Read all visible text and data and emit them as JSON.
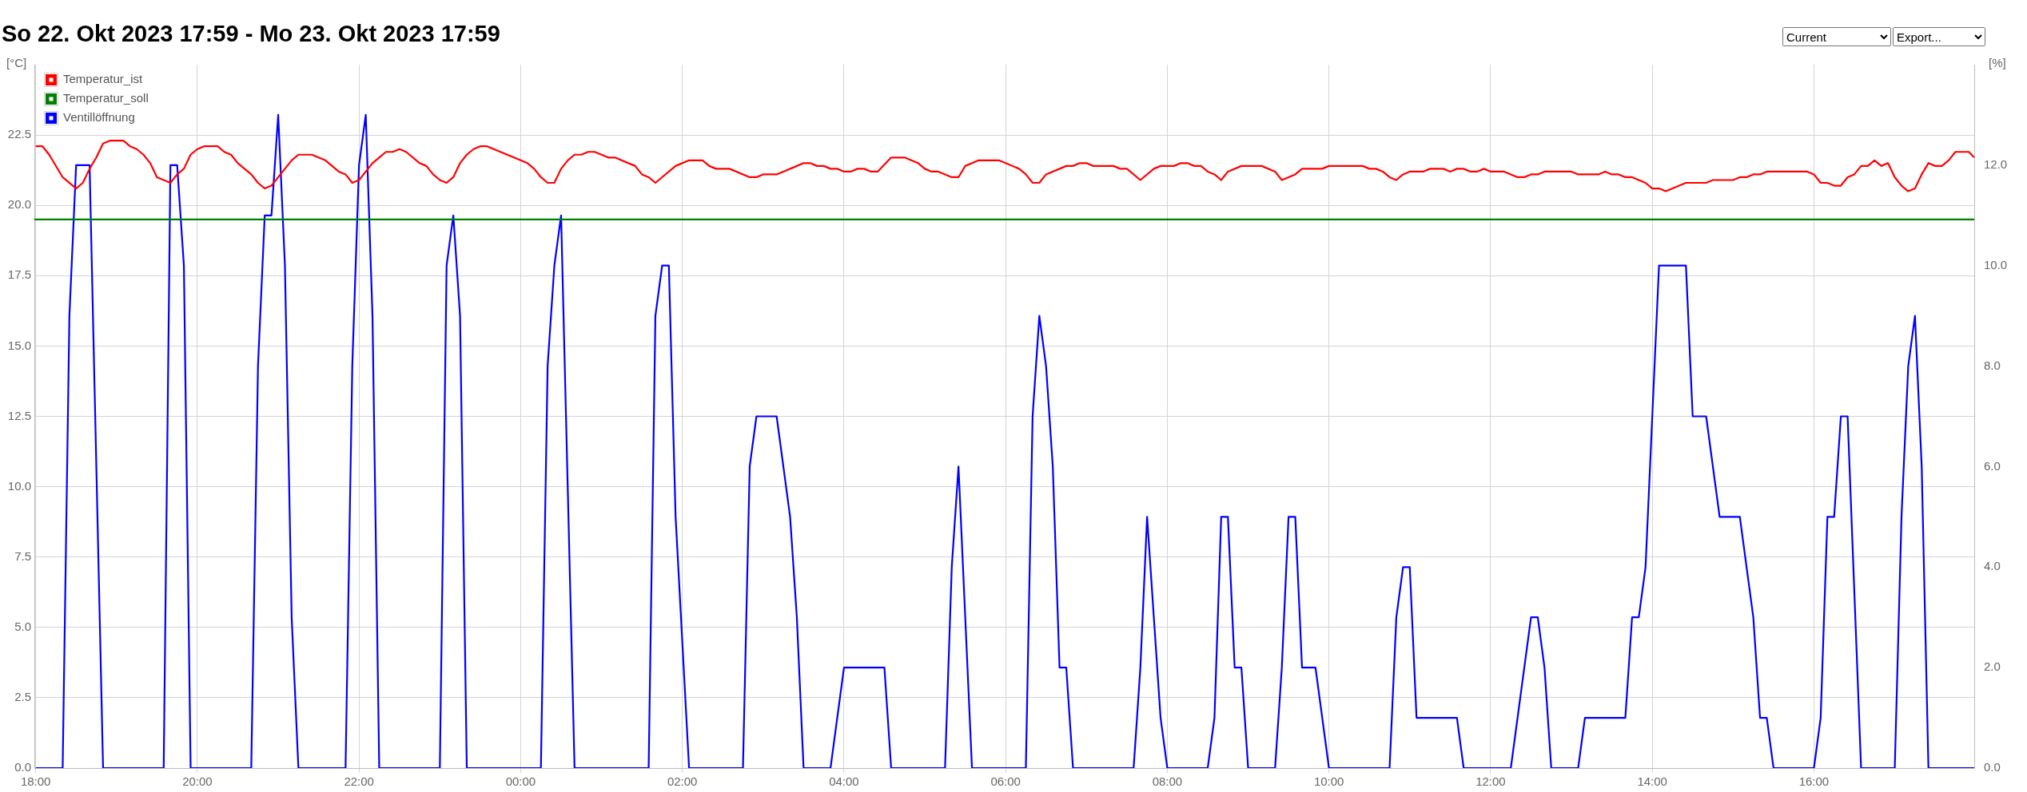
{
  "chart_data": {
    "type": "line",
    "title": "So 22. Okt 2023 17:59 - Mo 23. Okt 2023 17:59",
    "annotations": [
      "Current",
      "Export..."
    ],
    "ylabel": "[°C]",
    "y2label": "[%]",
    "xlim": [
      "2023-10-22T17:59",
      "2023-10-23T17:59"
    ],
    "xticks": [
      {
        "value": "2023-10-22T18:00",
        "label": "18:00"
      },
      {
        "value": "2023-10-22T20:00",
        "label": "20:00"
      },
      {
        "value": "2023-10-22T22:00",
        "label": "22:00"
      },
      {
        "value": "2023-10-23T00:00",
        "label": "00:00"
      },
      {
        "value": "2023-10-23T02:00",
        "label": "02:00"
      },
      {
        "value": "2023-10-23T04:00",
        "label": "04:00"
      },
      {
        "value": "2023-10-23T06:00",
        "label": "06:00"
      },
      {
        "value": "2023-10-23T08:00",
        "label": "08:00"
      },
      {
        "value": "2023-10-23T10:00",
        "label": "10:00"
      },
      {
        "value": "2023-10-23T12:00",
        "label": "12:00"
      },
      {
        "value": "2023-10-23T14:00",
        "label": "14:00"
      },
      {
        "value": "2023-10-23T16:00",
        "label": "16:00"
      }
    ],
    "ylim": [
      0,
      25
    ],
    "yticks": [
      {
        "value": 0,
        "label": "0.0"
      },
      {
        "value": 2.5,
        "label": "2.5"
      },
      {
        "value": 5,
        "label": "5.0"
      },
      {
        "value": 7.5,
        "label": "7.5"
      },
      {
        "value": 10,
        "label": "10.0"
      },
      {
        "value": 12.5,
        "label": "12.5"
      },
      {
        "value": 15,
        "label": "15.0"
      },
      {
        "value": 17.5,
        "label": "17.5"
      },
      {
        "value": 20,
        "label": "20.0"
      },
      {
        "value": 22.5,
        "label": "22.5"
      }
    ],
    "y2lim": [
      0,
      14
    ],
    "y2ticks": [
      {
        "value": 0,
        "label": "0.0"
      },
      {
        "value": 2,
        "label": "2.0"
      },
      {
        "value": 4,
        "label": "4.0"
      },
      {
        "value": 6,
        "label": "6.0"
      },
      {
        "value": 8,
        "label": "8.0"
      },
      {
        "value": 10,
        "label": "10.0"
      },
      {
        "value": 12,
        "label": "12.0"
      }
    ],
    "grid": true,
    "legend": "top left",
    "marker": "none",
    "line_style": "solid",
    "series": [
      {
        "name": "Temperatur_ist",
        "color": "#ff0000",
        "x": [
          "2023-10-22T18:00",
          "2023-10-22T18:05",
          "2023-10-22T18:10",
          "2023-10-22T18:20",
          "2023-10-22T18:30",
          "2023-10-22T18:35",
          "2023-10-22T18:40",
          "2023-10-22T18:45",
          "2023-10-22T18:50",
          "2023-10-22T18:55",
          "2023-10-22T19:05",
          "2023-10-22T19:10",
          "2023-10-22T19:15",
          "2023-10-22T19:20",
          "2023-10-22T19:25",
          "2023-10-22T19:30",
          "2023-10-22T19:40",
          "2023-10-22T19:45",
          "2023-10-22T19:50",
          "2023-10-22T19:55",
          "2023-10-22T20:00",
          "2023-10-22T20:05",
          "2023-10-22T20:15",
          "2023-10-22T20:20",
          "2023-10-22T20:25",
          "2023-10-22T20:30",
          "2023-10-22T20:40",
          "2023-10-22T20:45",
          "2023-10-22T20:50",
          "2023-10-22T20:55",
          "2023-10-22T21:05",
          "2023-10-22T21:10",
          "2023-10-22T21:15",
          "2023-10-22T21:25",
          "2023-10-22T21:35",
          "2023-10-22T21:45",
          "2023-10-22T21:50",
          "2023-10-22T21:55",
          "2023-10-22T22:00",
          "2023-10-22T22:10",
          "2023-10-22T22:15",
          "2023-10-22T22:20",
          "2023-10-22T22:25",
          "2023-10-22T22:30",
          "2023-10-22T22:35",
          "2023-10-22T22:45",
          "2023-10-22T22:50",
          "2023-10-22T22:55",
          "2023-10-22T23:00",
          "2023-10-22T23:05",
          "2023-10-22T23:10",
          "2023-10-22T23:15",
          "2023-10-22T23:20",
          "2023-10-22T23:25",
          "2023-10-22T23:30",
          "2023-10-22T23:35",
          "2023-10-23T00:05",
          "2023-10-23T00:10",
          "2023-10-23T00:15",
          "2023-10-23T00:20",
          "2023-10-23T00:25",
          "2023-10-23T00:30",
          "2023-10-23T00:35",
          "2023-10-23T00:40",
          "2023-10-23T00:45",
          "2023-10-23T00:50",
          "2023-10-23T00:55",
          "2023-10-23T01:05",
          "2023-10-23T01:10",
          "2023-10-23T01:25",
          "2023-10-23T01:30",
          "2023-10-23T01:35",
          "2023-10-23T01:40",
          "2023-10-23T01:55",
          "2023-10-23T02:05",
          "2023-10-23T02:15",
          "2023-10-23T02:20",
          "2023-10-23T02:25",
          "2023-10-23T02:35",
          "2023-10-23T02:50",
          "2023-10-23T02:55",
          "2023-10-23T03:00",
          "2023-10-23T03:10",
          "2023-10-23T03:15",
          "2023-10-23T03:25",
          "2023-10-23T03:30",
          "2023-10-23T03:35",
          "2023-10-23T03:40",
          "2023-10-23T03:45",
          "2023-10-23T03:50",
          "2023-10-23T03:55",
          "2023-10-23T04:00",
          "2023-10-23T04:05",
          "2023-10-23T04:10",
          "2023-10-23T04:15",
          "2023-10-23T04:20",
          "2023-10-23T04:25",
          "2023-10-23T04:35",
          "2023-10-23T04:45",
          "2023-10-23T04:55",
          "2023-10-23T05:00",
          "2023-10-23T05:05",
          "2023-10-23T05:10",
          "2023-10-23T05:20",
          "2023-10-23T05:25",
          "2023-10-23T05:30",
          "2023-10-23T05:40",
          "2023-10-23T05:55",
          "2023-10-23T06:10",
          "2023-10-23T06:15",
          "2023-10-23T06:20",
          "2023-10-23T06:25",
          "2023-10-23T06:30",
          "2023-10-23T06:45",
          "2023-10-23T06:50",
          "2023-10-23T06:55",
          "2023-10-23T07:00",
          "2023-10-23T07:05",
          "2023-10-23T07:20",
          "2023-10-23T07:25",
          "2023-10-23T07:30",
          "2023-10-23T07:40",
          "2023-10-23T07:50",
          "2023-10-23T07:55",
          "2023-10-23T08:05",
          "2023-10-23T08:10",
          "2023-10-23T08:15",
          "2023-10-23T08:20",
          "2023-10-23T08:25",
          "2023-10-23T08:30",
          "2023-10-23T08:35",
          "2023-10-23T08:40",
          "2023-10-23T08:45",
          "2023-10-23T08:55",
          "2023-10-23T09:10",
          "2023-10-23T09:20",
          "2023-10-23T09:25",
          "2023-10-23T09:35",
          "2023-10-23T09:40",
          "2023-10-23T09:55",
          "2023-10-23T10:00",
          "2023-10-23T10:25",
          "2023-10-23T10:30",
          "2023-10-23T10:35",
          "2023-10-23T10:40",
          "2023-10-23T10:45",
          "2023-10-23T10:50",
          "2023-10-23T10:55",
          "2023-10-23T11:00",
          "2023-10-23T11:10",
          "2023-10-23T11:15",
          "2023-10-23T11:25",
          "2023-10-23T11:30",
          "2023-10-23T11:35",
          "2023-10-23T11:40",
          "2023-10-23T11:45",
          "2023-10-23T11:50",
          "2023-10-23T11:55",
          "2023-10-23T12:00",
          "2023-10-23T12:10",
          "2023-10-23T12:20",
          "2023-10-23T12:25",
          "2023-10-23T12:30",
          "2023-10-23T12:35",
          "2023-10-23T12:40",
          "2023-10-23T13:00",
          "2023-10-23T13:05",
          "2023-10-23T13:20",
          "2023-10-23T13:25",
          "2023-10-23T13:30",
          "2023-10-23T13:35",
          "2023-10-23T13:40",
          "2023-10-23T13:45",
          "2023-10-23T13:55",
          "2023-10-23T14:00",
          "2023-10-23T14:05",
          "2023-10-23T14:10",
          "2023-10-23T14:25",
          "2023-10-23T14:40",
          "2023-10-23T14:45",
          "2023-10-23T15:00",
          "2023-10-23T15:05",
          "2023-10-23T15:10",
          "2023-10-23T15:15",
          "2023-10-23T15:20",
          "2023-10-23T15:25",
          "2023-10-23T15:55",
          "2023-10-23T16:00",
          "2023-10-23T16:05",
          "2023-10-23T16:10",
          "2023-10-23T16:15",
          "2023-10-23T16:20",
          "2023-10-23T16:25",
          "2023-10-23T16:30",
          "2023-10-23T16:35",
          "2023-10-23T16:40",
          "2023-10-23T16:45",
          "2023-10-23T16:50",
          "2023-10-23T16:55",
          "2023-10-23T17:00",
          "2023-10-23T17:05",
          "2023-10-23T17:10",
          "2023-10-23T17:15",
          "2023-10-23T17:20",
          "2023-10-23T17:25",
          "2023-10-23T17:30",
          "2023-10-23T17:35",
          "2023-10-23T17:40",
          "2023-10-23T17:45",
          "2023-10-23T17:55",
          "2023-10-23T17:59"
        ],
        "values": [
          22.1,
          22.1,
          21.8,
          21.0,
          20.6,
          20.8,
          21.3,
          21.7,
          22.2,
          22.3,
          22.3,
          22.1,
          22.0,
          21.8,
          21.5,
          21.0,
          20.8,
          21.1,
          21.3,
          21.8,
          22.0,
          22.1,
          22.1,
          21.9,
          21.8,
          21.5,
          21.1,
          20.8,
          20.6,
          20.7,
          21.3,
          21.6,
          21.8,
          21.8,
          21.6,
          21.2,
          21.1,
          20.8,
          20.9,
          21.5,
          21.7,
          21.9,
          21.9,
          22.0,
          21.9,
          21.5,
          21.4,
          21.1,
          20.9,
          20.8,
          21.0,
          21.5,
          21.8,
          22.0,
          22.1,
          22.1,
          21.5,
          21.3,
          21.0,
          20.8,
          20.8,
          21.3,
          21.6,
          21.8,
          21.8,
          21.9,
          21.9,
          21.7,
          21.7,
          21.4,
          21.1,
          21.0,
          20.8,
          21.4,
          21.6,
          21.6,
          21.4,
          21.3,
          21.3,
          21.0,
          21.0,
          21.1,
          21.1,
          21.2,
          21.4,
          21.5,
          21.5,
          21.4,
          21.4,
          21.3,
          21.3,
          21.2,
          21.2,
          21.3,
          21.3,
          21.2,
          21.2,
          21.7,
          21.7,
          21.5,
          21.3,
          21.2,
          21.2,
          21.0,
          21.0,
          21.4,
          21.6,
          21.6,
          21.3,
          21.1,
          20.8,
          20.8,
          21.1,
          21.4,
          21.4,
          21.5,
          21.5,
          21.4,
          21.4,
          21.3,
          21.3,
          20.9,
          21.3,
          21.4,
          21.4,
          21.5,
          21.5,
          21.4,
          21.4,
          21.2,
          21.1,
          20.9,
          21.2,
          21.4,
          21.4,
          21.2,
          20.9,
          21.1,
          21.3,
          21.3,
          21.4,
          21.4,
          21.3,
          21.3,
          21.2,
          21.0,
          20.9,
          21.1,
          21.2,
          21.2,
          21.3,
          21.3,
          21.2,
          21.3,
          21.3,
          21.2,
          21.2,
          21.3,
          21.2,
          21.2,
          21.0,
          21.0,
          21.1,
          21.1,
          21.2,
          21.2,
          21.1,
          21.1,
          21.2,
          21.1,
          21.1,
          21.0,
          21.0,
          20.8,
          20.6,
          20.6,
          20.5,
          20.8,
          20.8,
          20.9,
          20.9,
          21.0,
          21.0,
          21.1,
          21.1,
          21.2,
          21.2,
          21.1,
          20.8,
          20.8,
          20.7,
          20.7,
          21.0,
          21.1,
          21.4,
          21.4,
          21.6,
          21.4,
          21.5,
          21.0,
          20.7,
          20.5,
          20.6,
          21.1,
          21.5,
          21.4,
          21.4,
          21.6,
          21.9,
          21.9,
          21.7
        ]
      },
      {
        "name": "Temperatur_soll",
        "color": "#008000",
        "x": [
          "2023-10-22T17:59",
          "2023-10-23T17:59"
        ],
        "values": [
          19.5,
          19.5
        ]
      },
      {
        "name": "Ventillöffnung",
        "color": "#0000ff",
        "axis": "y2",
        "x": [
          "2023-10-22T18:00",
          "2023-10-22T18:20",
          "2023-10-22T18:25",
          "2023-10-22T18:30",
          "2023-10-22T18:40",
          "2023-10-22T18:50",
          "2023-10-22T19:35",
          "2023-10-22T19:40",
          "2023-10-22T19:45",
          "2023-10-22T19:50",
          "2023-10-22T19:55",
          "2023-10-22T20:40",
          "2023-10-22T20:45",
          "2023-10-22T20:50",
          "2023-10-22T20:55",
          "2023-10-22T21:00",
          "2023-10-22T21:05",
          "2023-10-22T21:10",
          "2023-10-22T21:15",
          "2023-10-22T21:50",
          "2023-10-22T21:55",
          "2023-10-22T22:00",
          "2023-10-22T22:05",
          "2023-10-22T22:10",
          "2023-10-22T22:15",
          "2023-10-22T23:00",
          "2023-10-22T23:05",
          "2023-10-22T23:10",
          "2023-10-22T23:15",
          "2023-10-22T23:20",
          "2023-10-23T00:15",
          "2023-10-23T00:20",
          "2023-10-23T00:25",
          "2023-10-23T00:30",
          "2023-10-23T00:40",
          "2023-10-23T01:35",
          "2023-10-23T01:40",
          "2023-10-23T01:45",
          "2023-10-23T01:50",
          "2023-10-23T01:55",
          "2023-10-23T02:05",
          "2023-10-23T02:45",
          "2023-10-23T02:50",
          "2023-10-23T02:55",
          "2023-10-23T03:10",
          "2023-10-23T03:15",
          "2023-10-23T03:20",
          "2023-10-23T03:25",
          "2023-10-23T03:30",
          "2023-10-23T03:50",
          "2023-10-23T04:00",
          "2023-10-23T04:30",
          "2023-10-23T04:35",
          "2023-10-23T05:15",
          "2023-10-23T05:20",
          "2023-10-23T05:25",
          "2023-10-23T05:30",
          "2023-10-23T05:35",
          "2023-10-23T06:15",
          "2023-10-23T06:20",
          "2023-10-23T06:25",
          "2023-10-23T06:30",
          "2023-10-23T06:35",
          "2023-10-23T06:40",
          "2023-10-23T06:45",
          "2023-10-23T06:50",
          "2023-10-23T07:35",
          "2023-10-23T07:40",
          "2023-10-23T07:45",
          "2023-10-23T07:50",
          "2023-10-23T07:55",
          "2023-10-23T08:00",
          "2023-10-23T08:30",
          "2023-10-23T08:35",
          "2023-10-23T08:40",
          "2023-10-23T08:45",
          "2023-10-23T08:50",
          "2023-10-23T08:55",
          "2023-10-23T09:00",
          "2023-10-23T09:20",
          "2023-10-23T09:25",
          "2023-10-23T09:30",
          "2023-10-23T09:35",
          "2023-10-23T09:40",
          "2023-10-23T09:50",
          "2023-10-23T10:00",
          "2023-10-23T10:45",
          "2023-10-23T10:50",
          "2023-10-23T10:55",
          "2023-10-23T11:00",
          "2023-10-23T11:05",
          "2023-10-23T11:35",
          "2023-10-23T11:40",
          "2023-10-23T12:15",
          "2023-10-23T12:30",
          "2023-10-23T12:35",
          "2023-10-23T12:40",
          "2023-10-23T12:45",
          "2023-10-23T13:05",
          "2023-10-23T13:10",
          "2023-10-23T13:40",
          "2023-10-23T13:45",
          "2023-10-23T13:50",
          "2023-10-23T13:55",
          "2023-10-23T14:05",
          "2023-10-23T14:25",
          "2023-10-23T14:30",
          "2023-10-23T14:40",
          "2023-10-23T14:50",
          "2023-10-23T15:05",
          "2023-10-23T15:15",
          "2023-10-23T15:20",
          "2023-10-23T15:25",
          "2023-10-23T15:30",
          "2023-10-23T16:00",
          "2023-10-23T16:05",
          "2023-10-23T16:10",
          "2023-10-23T16:15",
          "2023-10-23T16:20",
          "2023-10-23T16:25",
          "2023-10-23T16:35",
          "2023-10-23T17:00",
          "2023-10-23T17:05",
          "2023-10-23T17:10",
          "2023-10-23T17:15",
          "2023-10-23T17:20",
          "2023-10-23T17:25",
          "2023-10-23T17:59"
        ],
        "values": [
          0,
          0,
          9,
          12,
          12,
          0,
          0,
          12,
          12,
          10,
          0,
          0,
          8,
          11,
          11,
          13,
          10,
          3,
          0,
          0,
          8,
          12,
          13,
          9,
          0,
          0,
          10,
          11,
          9,
          0,
          0,
          8,
          10,
          11,
          0,
          0,
          9,
          10,
          10,
          5,
          0,
          0,
          6,
          7,
          7,
          6,
          5,
          3,
          0,
          0,
          2,
          2,
          0,
          0,
          4,
          6,
          3,
          0,
          0,
          7,
          9,
          8,
          6,
          2,
          2,
          0,
          0,
          2,
          5,
          3,
          1,
          0,
          0,
          1,
          5,
          5,
          2,
          2,
          0,
          0,
          2,
          5,
          5,
          2,
          2,
          0,
          0,
          3,
          4,
          4,
          1,
          1,
          0,
          0,
          3,
          3,
          2,
          0,
          0,
          1,
          1,
          3,
          3,
          4,
          10,
          10,
          7,
          7,
          5,
          5,
          3,
          1,
          1,
          0,
          0,
          1,
          5,
          5,
          7,
          7,
          0,
          0,
          5,
          8,
          9,
          6,
          0,
          0
        ]
      }
    ]
  }
}
